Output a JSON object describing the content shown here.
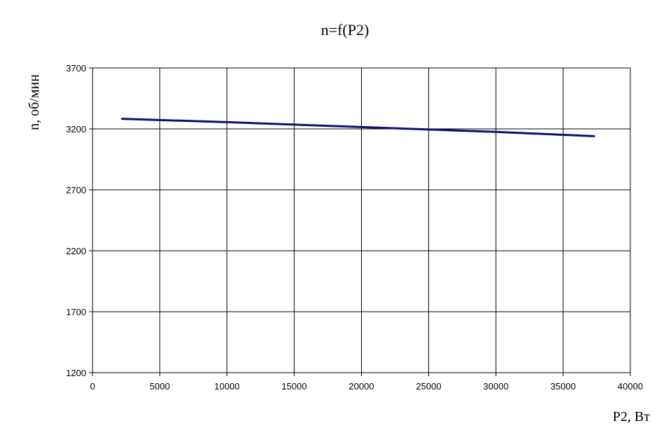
{
  "chart_data": {
    "type": "line",
    "title": "n=f(P2)",
    "xlabel": "P2, Вт",
    "ylabel": "n, об/мин",
    "xlim": [
      0,
      40000
    ],
    "ylim": [
      1200,
      3700
    ],
    "x_ticks": [
      "0",
      "5000",
      "10000",
      "15000",
      "20000",
      "25000",
      "30000",
      "35000",
      "40000"
    ],
    "y_ticks": [
      "1200",
      "1700",
      "2200",
      "2700",
      "3200",
      "3700"
    ],
    "grid": true,
    "legend": "none",
    "series": [
      {
        "color": "#0a1172",
        "x": [
          2200,
          10000,
          20000,
          25000,
          30000,
          37300
        ],
        "y": [
          3283,
          3255,
          3215,
          3195,
          3175,
          3140
        ]
      }
    ]
  }
}
